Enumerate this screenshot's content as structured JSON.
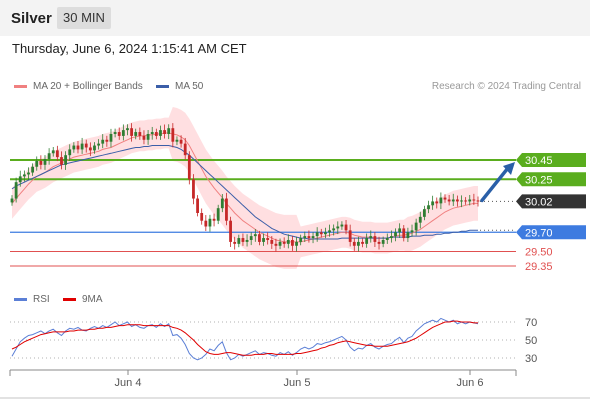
{
  "header": {
    "title": "Silver",
    "timeframe": "30 MIN"
  },
  "datetime": "Thursday, June 6, 2024 1:15:41 AM CET",
  "legend": {
    "ma20": {
      "label": "MA 20 + Bollinger Bands",
      "color": "#f08080"
    },
    "ma50": {
      "label": "MA 50",
      "color": "#3b5ea8"
    }
  },
  "copyright": "Research © 2024 Trading Central",
  "rsi_legend": {
    "rsi": {
      "label": "RSI",
      "color": "#5b7fd6"
    },
    "ma9": {
      "label": "9MA",
      "color": "#e00000"
    }
  },
  "colors": {
    "up": "#2e7d32",
    "down": "#c62828",
    "resistance": "#5aad1e",
    "support": "#3d7be0",
    "target": "#e05050",
    "current": "#333333",
    "arrow": "#2a5fa8",
    "band": "#ffd9dc"
  },
  "chart_data": [
    {
      "type": "candlestick",
      "x_labels": [
        "Jun 4",
        "Jun 5",
        "Jun 6"
      ],
      "price_axis_labels": [
        "30.45",
        "30.25",
        "30.02",
        "29.70",
        "29.50",
        "29.35"
      ],
      "current_price": 30.02,
      "resistance_levels": [
        30.45,
        30.25
      ],
      "support_levels": [
        29.7
      ],
      "target_levels": [
        29.5,
        29.35
      ],
      "ylim": [
        29.2,
        31.15
      ],
      "close_series": [
        30.05,
        30.22,
        30.28,
        30.3,
        30.32,
        30.38,
        30.44,
        30.4,
        30.46,
        30.52,
        30.55,
        30.48,
        30.4,
        30.5,
        30.56,
        30.6,
        30.56,
        30.62,
        30.58,
        30.55,
        30.6,
        30.62,
        30.66,
        30.64,
        30.72,
        30.74,
        30.7,
        30.76,
        30.78,
        30.7,
        30.74,
        30.7,
        30.66,
        30.72,
        30.74,
        30.7,
        30.76,
        30.72,
        30.78,
        30.64,
        30.66,
        30.62,
        30.5,
        30.25,
        30.05,
        29.9,
        29.82,
        29.76,
        29.84,
        29.82,
        29.95,
        30.05,
        29.82,
        29.6,
        29.58,
        29.64,
        29.6,
        29.62,
        29.66,
        29.68,
        29.6,
        29.64,
        29.62,
        29.58,
        29.56,
        29.6,
        29.58,
        29.62,
        29.56,
        29.6,
        29.64,
        29.66,
        29.64,
        29.66,
        29.7,
        29.68,
        29.7,
        29.72,
        29.74,
        29.76,
        29.78,
        29.72,
        29.6,
        29.56,
        29.6,
        29.58,
        29.64,
        29.66,
        29.6,
        29.58,
        29.62,
        29.64,
        29.66,
        29.7,
        29.74,
        29.64,
        29.7,
        29.72,
        29.8,
        29.86,
        29.94,
        29.98,
        30.02,
        30.0,
        30.06,
        30.04,
        30.02,
        30.04,
        30.02,
        30.03,
        30.02,
        30.04,
        30.03,
        30.02
      ],
      "ma20_series": [
        30.0,
        30.05,
        30.1,
        30.15,
        30.2,
        30.24,
        30.28,
        30.3,
        30.32,
        30.35,
        30.38,
        30.4,
        30.42,
        30.44,
        30.46,
        30.48,
        30.49,
        30.5,
        30.51,
        30.52,
        30.53,
        30.54,
        30.56,
        30.57,
        30.58,
        30.6,
        30.62,
        30.64,
        30.66,
        30.68,
        30.69,
        30.7,
        30.7,
        30.71,
        30.71,
        30.72,
        30.72,
        30.73,
        30.73,
        30.72,
        30.71,
        30.69,
        30.66,
        30.6,
        30.52,
        30.44,
        30.36,
        30.28,
        30.22,
        30.16,
        30.11,
        30.06,
        30.0,
        29.95,
        29.9,
        29.86,
        29.82,
        29.79,
        29.76,
        29.73,
        29.7,
        29.68,
        29.66,
        29.64,
        29.62,
        29.61,
        29.6,
        29.6,
        29.6,
        29.6,
        29.6,
        29.61,
        29.62,
        29.63,
        29.64,
        29.65,
        29.66,
        29.67,
        29.68,
        29.69,
        29.7,
        29.7,
        29.69,
        29.67,
        29.66,
        29.65,
        29.65,
        29.65,
        29.64,
        29.64,
        29.64,
        29.64,
        29.65,
        29.66,
        29.67,
        29.67,
        29.68,
        29.69,
        29.71,
        29.73,
        29.76,
        29.79,
        29.82,
        29.85,
        29.88,
        29.91,
        29.93,
        29.95,
        29.96,
        29.97,
        29.98,
        29.99,
        30.0,
        30.0
      ],
      "ma50_series": [
        30.15,
        30.18,
        30.2,
        30.22,
        30.24,
        30.26,
        30.28,
        30.3,
        30.32,
        30.34,
        30.36,
        30.38,
        30.4,
        30.41,
        30.42,
        30.43,
        30.44,
        30.45,
        30.46,
        30.47,
        30.48,
        30.49,
        30.5,
        30.51,
        30.52,
        30.53,
        30.54,
        30.55,
        30.56,
        30.57,
        30.58,
        30.58,
        30.59,
        30.59,
        30.6,
        30.6,
        30.6,
        30.6,
        30.6,
        30.59,
        30.58,
        30.56,
        30.53,
        30.5,
        30.46,
        30.42,
        30.38,
        30.34,
        30.3,
        30.26,
        30.22,
        30.18,
        30.14,
        30.1,
        30.06,
        30.02,
        29.98,
        29.94,
        29.9,
        29.86,
        29.83,
        29.8,
        29.77,
        29.74,
        29.72,
        29.7,
        29.68,
        29.67,
        29.66,
        29.65,
        29.64,
        29.64,
        29.63,
        29.63,
        29.63,
        29.63,
        29.63,
        29.63,
        29.63,
        29.63,
        29.64,
        29.64,
        29.64,
        29.64,
        29.64,
        29.64,
        29.64,
        29.64,
        29.64,
        29.64,
        29.64,
        29.64,
        29.65,
        29.65,
        29.65,
        29.65,
        29.65,
        29.66,
        29.66,
        29.66,
        29.67,
        29.67,
        29.67,
        29.68,
        29.68,
        29.69,
        29.69,
        29.7,
        29.7,
        29.71,
        29.71,
        29.72,
        29.72,
        29.72
      ]
    },
    {
      "type": "line",
      "y_labels": [
        "70",
        "50",
        "30"
      ],
      "ylim": [
        20,
        80
      ],
      "rsi_series": [
        32,
        40,
        48,
        52,
        55,
        56,
        58,
        60,
        57,
        60,
        62,
        58,
        55,
        60,
        63,
        62,
        64,
        61,
        60,
        63,
        65,
        63,
        66,
        64,
        67,
        70,
        66,
        68,
        70,
        65,
        67,
        64,
        63,
        66,
        67,
        64,
        68,
        65,
        68,
        55,
        56,
        52,
        45,
        35,
        30,
        28,
        30,
        34,
        40,
        38,
        44,
        48,
        36,
        28,
        30,
        34,
        32,
        34,
        36,
        38,
        34,
        36,
        35,
        33,
        32,
        36,
        34,
        37,
        33,
        36,
        40,
        42,
        40,
        42,
        46,
        45,
        47,
        48,
        50,
        52,
        54,
        50,
        42,
        38,
        41,
        40,
        44,
        46,
        42,
        40,
        43,
        45,
        46,
        50,
        53,
        47,
        52,
        54,
        60,
        64,
        68,
        70,
        72,
        70,
        74,
        72,
        70,
        72,
        68,
        70,
        68,
        70,
        69,
        68
      ],
      "ma9_series": [
        40,
        42,
        45,
        48,
        50,
        52,
        54,
        56,
        57,
        58,
        59,
        59,
        59,
        59,
        60,
        60,
        61,
        61,
        61,
        62,
        62,
        63,
        63,
        64,
        64,
        65,
        66,
        66,
        67,
        67,
        67,
        67,
        66,
        66,
        66,
        66,
        66,
        66,
        66,
        64,
        63,
        61,
        58,
        54,
        50,
        45,
        41,
        37,
        35,
        34,
        34,
        35,
        36,
        36,
        35,
        34,
        33,
        33,
        33,
        34,
        34,
        34,
        35,
        35,
        34,
        34,
        34,
        34,
        34,
        35,
        35,
        36,
        37,
        38,
        39,
        41,
        42,
        44,
        45,
        47,
        48,
        49,
        48,
        47,
        46,
        45,
        44,
        44,
        43,
        43,
        43,
        43,
        44,
        45,
        46,
        47,
        48,
        50,
        52,
        55,
        58,
        61,
        64,
        66,
        68,
        70,
        70,
        71,
        71,
        70,
        70,
        70,
        69,
        69
      ]
    }
  ]
}
